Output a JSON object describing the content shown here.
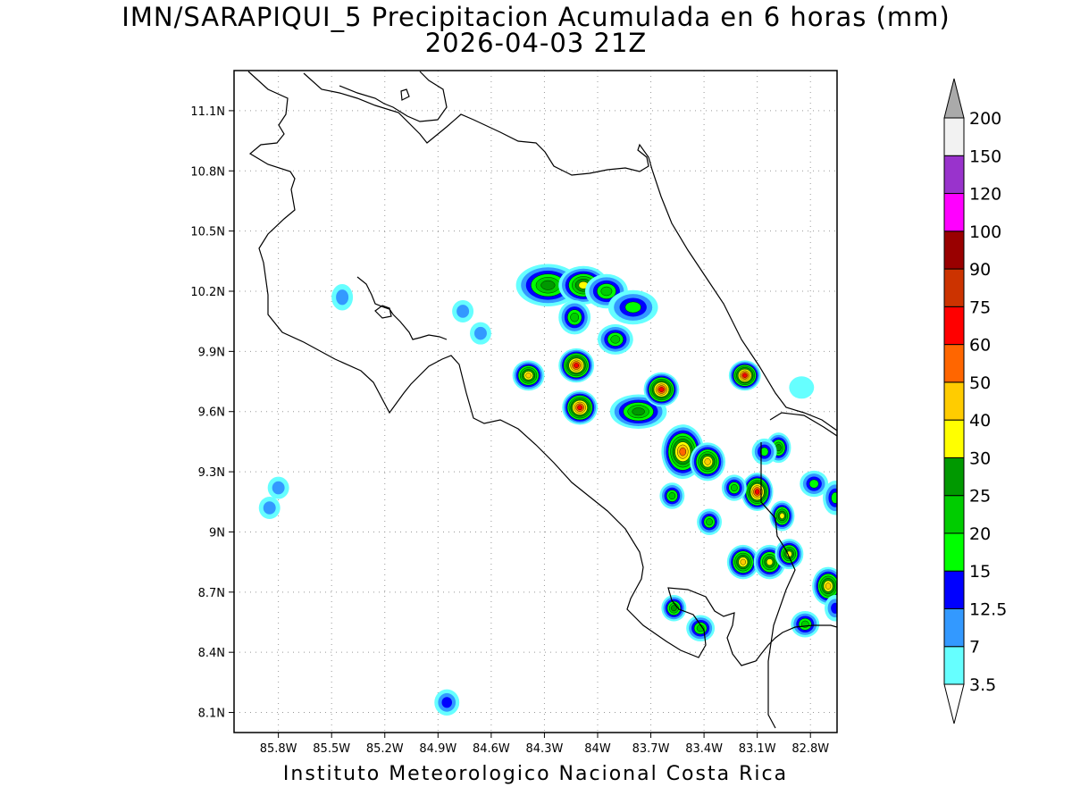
{
  "title": {
    "line1": "IMN/SARAPIQUI_5 Precipitacion Acumulada en 6 horas (mm)",
    "line2": "2026-04-03 21Z"
  },
  "footer": "Instituto Meteorologico Nacional Costa Rica",
  "map": {
    "lon_range": [
      -86.05,
      -82.65
    ],
    "lat_range": [
      8.0,
      11.3
    ],
    "lon_ticks": [
      {
        "value": -85.8,
        "label": "85.8W"
      },
      {
        "value": -85.5,
        "label": "85.5W"
      },
      {
        "value": -85.2,
        "label": "85.2W"
      },
      {
        "value": -84.9,
        "label": "84.9W"
      },
      {
        "value": -84.6,
        "label": "84.6W"
      },
      {
        "value": -84.3,
        "label": "84.3W"
      },
      {
        "value": -84.0,
        "label": "84W"
      },
      {
        "value": -83.7,
        "label": "83.7W"
      },
      {
        "value": -83.4,
        "label": "83.4W"
      },
      {
        "value": -83.1,
        "label": "83.1W"
      },
      {
        "value": -82.8,
        "label": "82.8W"
      }
    ],
    "lat_ticks": [
      {
        "value": 11.1,
        "label": "11.1N"
      },
      {
        "value": 10.8,
        "label": "10.8N"
      },
      {
        "value": 10.5,
        "label": "10.5N"
      },
      {
        "value": 10.2,
        "label": "10.2N"
      },
      {
        "value": 9.9,
        "label": "9.9N"
      },
      {
        "value": 9.6,
        "label": "9.6N"
      },
      {
        "value": 9.3,
        "label": "9.3N"
      },
      {
        "value": 9.0,
        "label": "9N"
      },
      {
        "value": 8.7,
        "label": "8.7N"
      },
      {
        "value": 8.4,
        "label": "8.4N"
      },
      {
        "value": 8.1,
        "label": "8.1N"
      }
    ],
    "grid": "dotted"
  },
  "colorbar": {
    "labels": [
      "3.5",
      "7",
      "12.5",
      "15",
      "20",
      "25",
      "30",
      "40",
      "50",
      "60",
      "75",
      "90",
      "100",
      "120",
      "150",
      "200"
    ],
    "colors": [
      "#66ffff",
      "#3399ff",
      "#0000ff",
      "#00ff00",
      "#00cc00",
      "#009900",
      "#ffff00",
      "#ffcc00",
      "#ff6600",
      "#ff0000",
      "#cc3300",
      "#990000",
      "#ff00ff",
      "#9933cc",
      "#f2f2f2"
    ],
    "over_color": "#aaaaaa",
    "under_color": "#ffffff"
  },
  "precip_cells": [
    {
      "lon": -84.28,
      "lat": 10.23,
      "rx": 0.14,
      "ry": 0.07,
      "level": 5
    },
    {
      "lon": -84.08,
      "lat": 10.23,
      "rx": 0.1,
      "ry": 0.06,
      "level": 6
    },
    {
      "lon": -83.95,
      "lat": 10.2,
      "rx": 0.08,
      "ry": 0.05,
      "level": 4
    },
    {
      "lon": -83.8,
      "lat": 10.12,
      "rx": 0.1,
      "ry": 0.05,
      "level": 3
    },
    {
      "lon": -84.13,
      "lat": 10.07,
      "rx": 0.05,
      "ry": 0.05,
      "level": 4
    },
    {
      "lon": -83.9,
      "lat": 9.96,
      "rx": 0.06,
      "ry": 0.04,
      "level": 4
    },
    {
      "lon": -84.39,
      "lat": 9.78,
      "rx": 0.05,
      "ry": 0.04,
      "level": 7
    },
    {
      "lon": -84.12,
      "lat": 9.83,
      "rx": 0.06,
      "ry": 0.05,
      "level": 9
    },
    {
      "lon": -84.1,
      "lat": 9.62,
      "rx": 0.06,
      "ry": 0.05,
      "level": 9
    },
    {
      "lon": -83.77,
      "lat": 9.6,
      "rx": 0.12,
      "ry": 0.05,
      "level": 5
    },
    {
      "lon": -83.64,
      "lat": 9.71,
      "rx": 0.06,
      "ry": 0.05,
      "level": 9
    },
    {
      "lon": -83.52,
      "lat": 9.4,
      "rx": 0.08,
      "ry": 0.1,
      "level": 8
    },
    {
      "lon": -83.38,
      "lat": 9.35,
      "rx": 0.06,
      "ry": 0.06,
      "level": 7
    },
    {
      "lon": -83.17,
      "lat": 9.78,
      "rx": 0.05,
      "ry": 0.04,
      "level": 9
    },
    {
      "lon": -83.1,
      "lat": 9.2,
      "rx": 0.05,
      "ry": 0.06,
      "level": 9
    },
    {
      "lon": -82.98,
      "lat": 9.42,
      "rx": 0.03,
      "ry": 0.04,
      "level": 5
    },
    {
      "lon": -82.96,
      "lat": 9.08,
      "rx": 0.03,
      "ry": 0.04,
      "level": 6
    },
    {
      "lon": -83.18,
      "lat": 8.85,
      "rx": 0.05,
      "ry": 0.05,
      "level": 7
    },
    {
      "lon": -83.03,
      "lat": 8.85,
      "rx": 0.05,
      "ry": 0.05,
      "level": 6
    },
    {
      "lon": -82.92,
      "lat": 8.89,
      "rx": 0.04,
      "ry": 0.04,
      "level": 6
    },
    {
      "lon": -82.7,
      "lat": 8.73,
      "rx": 0.05,
      "ry": 0.06,
      "level": 7
    },
    {
      "lon": -83.42,
      "lat": 8.52,
      "rx": 0.04,
      "ry": 0.03,
      "level": 4
    },
    {
      "lon": -83.57,
      "lat": 8.62,
      "rx": 0.03,
      "ry": 0.03,
      "level": 5
    },
    {
      "lon": -83.23,
      "lat": 9.22,
      "rx": 0.03,
      "ry": 0.03,
      "level": 4
    },
    {
      "lon": -83.06,
      "lat": 9.4,
      "rx": 0.03,
      "ry": 0.03,
      "level": 3
    },
    {
      "lon": -83.58,
      "lat": 9.18,
      "rx": 0.03,
      "ry": 0.03,
      "level": 4
    },
    {
      "lon": -83.37,
      "lat": 9.05,
      "rx": 0.03,
      "ry": 0.03,
      "level": 4
    },
    {
      "lon": -82.78,
      "lat": 9.24,
      "rx": 0.04,
      "ry": 0.03,
      "level": 3
    },
    {
      "lon": -82.83,
      "lat": 8.54,
      "rx": 0.04,
      "ry": 0.03,
      "level": 4
    },
    {
      "lon": -84.85,
      "lat": 8.15,
      "rx": 0.03,
      "ry": 0.03,
      "level": 2
    },
    {
      "lon": -85.8,
      "lat": 9.22,
      "rx": 0.02,
      "ry": 0.02,
      "level": 1
    },
    {
      "lon": -85.85,
      "lat": 9.12,
      "rx": 0.02,
      "ry": 0.02,
      "level": 1
    },
    {
      "lon": -85.44,
      "lat": 10.17,
      "rx": 0.02,
      "ry": 0.03,
      "level": 1
    },
    {
      "lon": -84.66,
      "lat": 9.99,
      "rx": 0.02,
      "ry": 0.02,
      "level": 1
    },
    {
      "lon": -84.76,
      "lat": 10.1,
      "rx": 0.02,
      "ry": 0.02,
      "level": 1
    },
    {
      "lon": -82.85,
      "lat": 9.72,
      "rx": 0.03,
      "ry": 0.02,
      "level": 0
    },
    {
      "lon": -82.66,
      "lat": 9.17,
      "rx": 0.03,
      "ry": 0.05,
      "level": 3
    },
    {
      "lon": -82.66,
      "lat": 8.62,
      "rx": 0.02,
      "ry": 0.03,
      "level": 2
    }
  ]
}
